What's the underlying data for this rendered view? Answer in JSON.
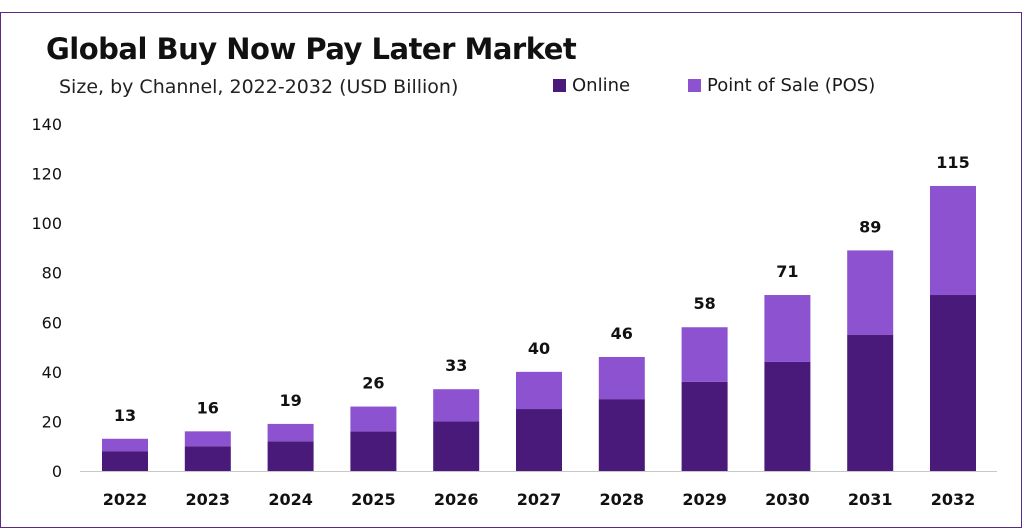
{
  "chart_data": {
    "type": "bar",
    "stacked": true,
    "title": "Global Buy Now Pay Later Market",
    "subtitle": "Size, by Channel, 2022-2032 (USD Billion)",
    "categories": [
      "2022",
      "2023",
      "2024",
      "2025",
      "2026",
      "2027",
      "2028",
      "2029",
      "2030",
      "2031",
      "2032"
    ],
    "totals": [
      13,
      16,
      19,
      26,
      33,
      40,
      46,
      58,
      71,
      89,
      115
    ],
    "series": [
      {
        "name": "Online",
        "color": "#4a1a7a",
        "values": [
          8,
          10,
          12,
          16,
          20,
          25,
          29,
          36,
          44,
          55,
          71
        ]
      },
      {
        "name": "Point of Sale (POS)",
        "color": "#8c52cf",
        "values": [
          5,
          6,
          7,
          10,
          13,
          15,
          17,
          22,
          27,
          34,
          44
        ]
      }
    ],
    "ylim": [
      0,
      140
    ],
    "yticks": [
      0,
      20,
      40,
      60,
      80,
      100,
      120,
      140
    ],
    "xlabel": "",
    "ylabel": "",
    "grid": false,
    "legend_position": "top-right"
  }
}
